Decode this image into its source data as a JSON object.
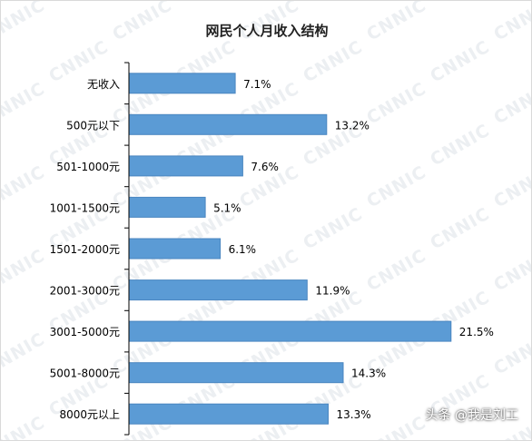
{
  "watermark_text": "CNNIC",
  "credit": "头条 @我是刘工",
  "chart_data": {
    "type": "bar",
    "orientation": "horizontal",
    "title": "网民个人月收入结构",
    "categories": [
      "无收入",
      "500元以下",
      "501-1000元",
      "1001-1500元",
      "1501-2000元",
      "2001-3000元",
      "3001-5000元",
      "5001-8000元",
      "8000元以上"
    ],
    "values": [
      7.1,
      13.2,
      7.6,
      5.1,
      6.1,
      11.9,
      21.5,
      14.3,
      13.3
    ],
    "value_labels": [
      "7.1%",
      "13.2%",
      "7.6%",
      "5.1%",
      "6.1%",
      "11.9%",
      "21.5%",
      "14.3%",
      "13.3%"
    ],
    "xlim": [
      0,
      25
    ],
    "unit": "%",
    "bar_color": "#5b9bd5",
    "bar_edge_color": "#4a86c0",
    "axis_color": "#000000",
    "grid": false,
    "legend": "none"
  }
}
